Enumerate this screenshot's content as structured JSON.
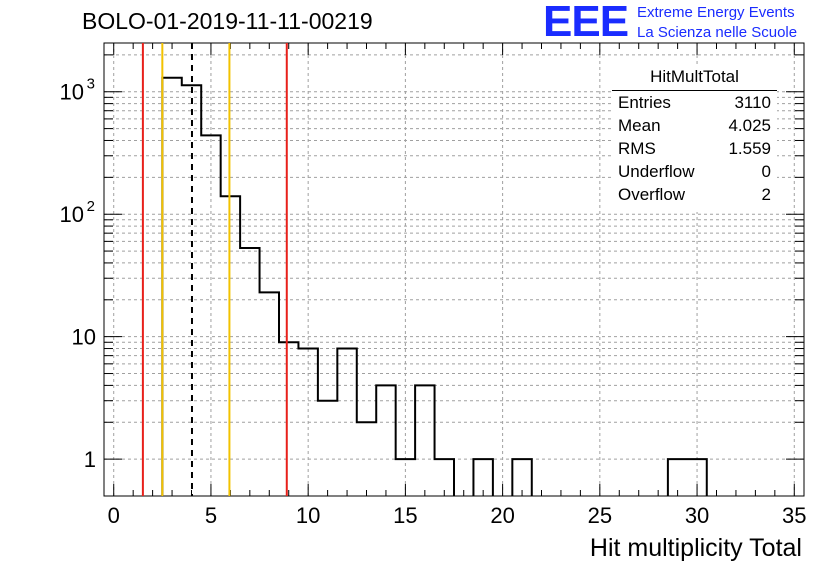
{
  "title": "BOLO-01-2019-11-11-00219",
  "logo": {
    "mark": "EEE",
    "line1": "Extreme Energy Events",
    "line2": "La Scienza nelle Scuole",
    "color": "#1a2cff"
  },
  "stats_box": {
    "name": "HitMultTotal",
    "rows": [
      {
        "label": "Entries",
        "value": "3110"
      },
      {
        "label": "Mean",
        "value": "4.025"
      },
      {
        "label": "RMS",
        "value": "1.559"
      },
      {
        "label": "Underflow",
        "value": "0"
      },
      {
        "label": "Overflow",
        "value": "2"
      }
    ]
  },
  "chart_data": {
    "type": "bar",
    "subtype": "histogram-step",
    "title": "BOLO-01-2019-11-11-00219",
    "xlabel": "Hit multiplicity Total",
    "ylabel": "",
    "xlim": [
      -0.5,
      35.5
    ],
    "ylim": [
      0.5,
      2500
    ],
    "yscale": "log",
    "grid": true,
    "x_ticks": [
      0,
      5,
      10,
      15,
      20,
      25,
      30,
      35
    ],
    "y_ticks": [
      {
        "value": 1,
        "label": "1",
        "sup": ""
      },
      {
        "value": 10,
        "label": "10",
        "sup": ""
      },
      {
        "value": 100,
        "label": "10",
        "sup": "2"
      },
      {
        "value": 1000,
        "label": "10",
        "sup": "3"
      }
    ],
    "bin_width": 1,
    "bins": [
      {
        "low": 2.5,
        "count": 1300
      },
      {
        "low": 3.5,
        "count": 1130
      },
      {
        "low": 4.5,
        "count": 440
      },
      {
        "low": 5.5,
        "count": 140
      },
      {
        "low": 6.5,
        "count": 53
      },
      {
        "low": 7.5,
        "count": 23
      },
      {
        "low": 8.5,
        "count": 9
      },
      {
        "low": 9.5,
        "count": 8
      },
      {
        "low": 10.5,
        "count": 3
      },
      {
        "low": 11.5,
        "count": 8
      },
      {
        "low": 12.5,
        "count": 2
      },
      {
        "low": 13.5,
        "count": 4
      },
      {
        "low": 14.5,
        "count": 1
      },
      {
        "low": 15.5,
        "count": 4
      },
      {
        "low": 16.5,
        "count": 1
      },
      {
        "low": 18.5,
        "count": 1
      },
      {
        "low": 20.5,
        "count": 1
      },
      {
        "low": 28.5,
        "count": 1
      },
      {
        "low": 29.5,
        "count": 1
      }
    ],
    "vertical_lines": [
      {
        "x": 1.5,
        "color": "#e8201a",
        "style": "solid"
      },
      {
        "x": 2.5,
        "color": "#f2c200",
        "style": "solid"
      },
      {
        "x": 4.025,
        "color": "#000000",
        "style": "dashed"
      },
      {
        "x": 5.95,
        "color": "#f2c200",
        "style": "solid"
      },
      {
        "x": 8.9,
        "color": "#e8201a",
        "style": "solid"
      }
    ]
  }
}
